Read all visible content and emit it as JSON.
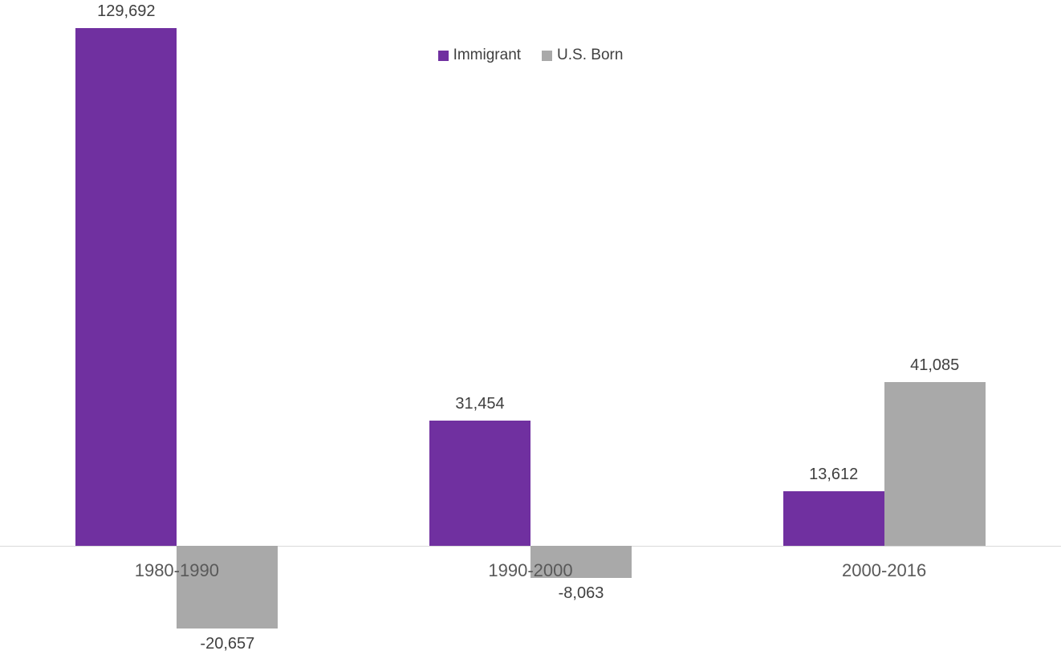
{
  "chart_data": {
    "type": "bar",
    "title": "",
    "xlabel": "",
    "ylabel": "",
    "categories": [
      "1980-1990",
      "1990-2000",
      "2000-2016"
    ],
    "series": [
      {
        "name": "Immigrant",
        "color": "#7030A0",
        "values": [
          129692,
          31454,
          13612
        ],
        "labels": [
          "129,692",
          "31,454",
          "13,612"
        ]
      },
      {
        "name": "U.S. Born",
        "color": "#A9A9A9",
        "values": [
          -20657,
          -8063,
          41085
        ],
        "labels": [
          "-20,657",
          "-8,063",
          "41,085"
        ]
      }
    ],
    "ylim": [
      -25000,
      135000
    ],
    "grid": false,
    "legend_position": "top-center",
    "axis_line_color": "#D9D9D9",
    "value_label_color": "#404040",
    "category_label_color": "#595959"
  }
}
